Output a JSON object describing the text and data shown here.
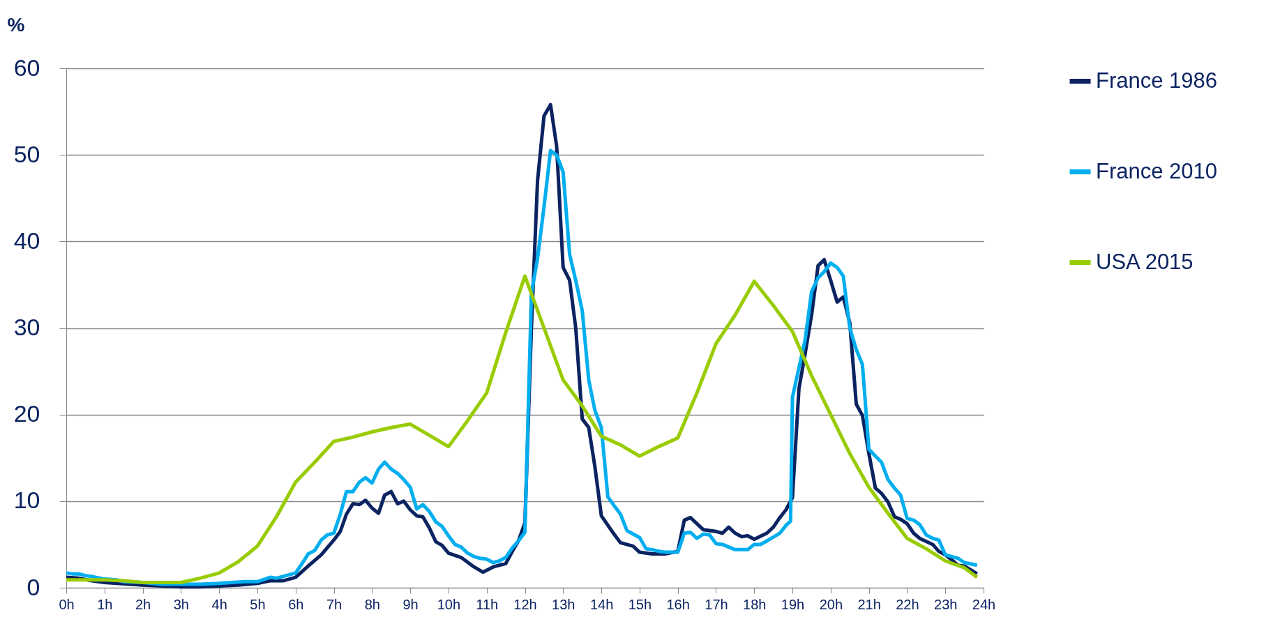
{
  "chart_data": {
    "type": "line",
    "ylabel": "%",
    "xlim": [
      0,
      24
    ],
    "xticks": [
      {
        "value": 0,
        "label": "0h"
      },
      {
        "value": 1,
        "label": "1h"
      },
      {
        "value": 2,
        "label": "2h"
      },
      {
        "value": 3,
        "label": "3h"
      },
      {
        "value": 4,
        "label": "4h"
      },
      {
        "value": 5,
        "label": "5h"
      },
      {
        "value": 6,
        "label": "6h"
      },
      {
        "value": 7,
        "label": "7h"
      },
      {
        "value": 8,
        "label": "8h"
      },
      {
        "value": 9,
        "label": "9h"
      },
      {
        "value": 10,
        "label": "10h"
      },
      {
        "value": 11,
        "label": "11h"
      },
      {
        "value": 12,
        "label": "12h"
      },
      {
        "value": 13,
        "label": "13h"
      },
      {
        "value": 14,
        "label": "14h"
      },
      {
        "value": 15,
        "label": "15h"
      },
      {
        "value": 16,
        "label": "16h"
      },
      {
        "value": 17,
        "label": "17h"
      },
      {
        "value": 18,
        "label": "18h"
      },
      {
        "value": 19,
        "label": "19h"
      },
      {
        "value": 20,
        "label": "20h"
      },
      {
        "value": 21,
        "label": "21h"
      },
      {
        "value": 22,
        "label": "22h"
      },
      {
        "value": 23,
        "label": "23h"
      },
      {
        "value": 24,
        "label": "24h"
      }
    ],
    "ylim": [
      0,
      60
    ],
    "yticks": [
      0,
      10,
      20,
      30,
      40,
      50,
      60
    ],
    "grid": "y",
    "legend": "right",
    "marker": "none",
    "line_style": "solid",
    "series": [
      {
        "name": "France 1986",
        "color": "#0b2361",
        "x": [
          0,
          0.33,
          0.67,
          1,
          1.33,
          1.67,
          2,
          2.5,
          3,
          3.5,
          4,
          4.5,
          5,
          5.33,
          5.67,
          6,
          6.33,
          6.67,
          7,
          7.17,
          7.33,
          7.5,
          7.67,
          7.83,
          8,
          8.17,
          8.33,
          8.5,
          8.67,
          8.83,
          9,
          9.17,
          9.33,
          9.5,
          9.67,
          9.83,
          10,
          10.33,
          10.67,
          10.9,
          11.17,
          11.5,
          11.67,
          11.83,
          12,
          12.17,
          12.33,
          12.5,
          12.67,
          12.83,
          13,
          13.17,
          13.33,
          13.5,
          13.67,
          13.83,
          14,
          14.33,
          14.5,
          14.83,
          15,
          15.33,
          15.67,
          16,
          16.17,
          16.33,
          16.5,
          16.67,
          17,
          17.17,
          17.33,
          17.5,
          17.67,
          17.83,
          18,
          18.33,
          18.5,
          18.67,
          18.83,
          19,
          19.17,
          19.33,
          19.5,
          19.67,
          19.83,
          20,
          20.17,
          20.33,
          20.5,
          20.67,
          20.83,
          21,
          21.17,
          21.33,
          21.5,
          21.67,
          21.83,
          22,
          22.17,
          22.33,
          22.67,
          22.83,
          23,
          23.17,
          23.33,
          23.5,
          23.83
        ],
        "values": [
          1.2,
          1.1,
          0.8,
          0.6,
          0.5,
          0.4,
          0.3,
          0.2,
          0.1,
          0.1,
          0.2,
          0.3,
          0.5,
          0.8,
          0.8,
          1.2,
          2.5,
          3.8,
          5.5,
          6.5,
          8.5,
          9.7,
          9.6,
          10.1,
          9.2,
          8.6,
          10.7,
          11.1,
          9.7,
          10,
          9,
          8.3,
          8.2,
          6.9,
          5.3,
          4.9,
          4,
          3.5,
          2.4,
          1.8,
          2.4,
          2.8,
          4.2,
          5.4,
          7.5,
          30,
          47,
          54.5,
          55.8,
          51,
          37,
          35.5,
          30,
          19.5,
          18.5,
          14,
          8.3,
          6.2,
          5.2,
          4.8,
          4.1,
          3.9,
          3.9,
          4.2,
          7.8,
          8.1,
          7.4,
          6.7,
          6.5,
          6.3,
          7,
          6.3,
          5.9,
          6,
          5.6,
          6.3,
          7,
          8.1,
          9,
          10.4,
          23,
          27,
          31.5,
          37.2,
          37.9,
          35.5,
          33,
          33.6,
          30.6,
          21.2,
          19.9,
          15.5,
          11.5,
          10.9,
          9.9,
          8.2,
          7.9,
          7.4,
          6.3,
          5.7,
          5,
          4.2,
          3.8,
          3.2,
          2.6,
          2.5,
          1.6
        ]
      },
      {
        "name": "France 2010",
        "color": "#00aeef",
        "x": [
          0,
          0.17,
          0.33,
          0.5,
          0.67,
          1,
          1.33,
          1.5,
          2,
          2.5,
          3,
          3.5,
          4,
          4.33,
          4.67,
          5,
          5.33,
          5.5,
          5.83,
          6,
          6.17,
          6.33,
          6.5,
          6.67,
          6.83,
          7,
          7.17,
          7.33,
          7.5,
          7.67,
          7.83,
          8,
          8.17,
          8.33,
          8.5,
          8.67,
          8.83,
          9,
          9.17,
          9.33,
          9.5,
          9.67,
          9.83,
          10,
          10.17,
          10.33,
          10.5,
          10.67,
          10.83,
          11,
          11.17,
          11.33,
          11.5,
          11.67,
          11.83,
          12,
          12.17,
          12.33,
          12.5,
          12.67,
          12.83,
          13,
          13.17,
          13.33,
          13.5,
          13.67,
          13.83,
          14,
          14.17,
          14.33,
          14.5,
          14.67,
          14.83,
          15,
          15.17,
          15.33,
          15.5,
          15.67,
          16,
          16.17,
          16.33,
          16.5,
          16.67,
          16.83,
          17,
          17.17,
          17.33,
          17.5,
          17.67,
          17.83,
          18,
          18.17,
          18.33,
          18.67,
          18.83,
          18.95,
          19,
          19.33,
          19.5,
          19.67,
          19.83,
          20,
          20.17,
          20.33,
          20.5,
          20.67,
          20.83,
          21,
          21.17,
          21.33,
          21.5,
          21.67,
          21.83,
          22,
          22.17,
          22.33,
          22.5,
          22.67,
          22.83,
          23,
          23.17,
          23.33,
          23.5,
          23.83
        ],
        "values": [
          1.7,
          1.6,
          1.6,
          1.4,
          1.3,
          1,
          0.9,
          0.7,
          0.6,
          0.4,
          0.4,
          0.4,
          0.5,
          0.6,
          0.7,
          0.7,
          1.2,
          1.1,
          1.5,
          1.7,
          2.8,
          3.9,
          4.3,
          5.5,
          6.1,
          6.3,
          8.5,
          11.1,
          11.1,
          12.2,
          12.7,
          12.1,
          13.7,
          14.5,
          13.7,
          13.2,
          12.5,
          11.6,
          9.1,
          9.6,
          8.8,
          7.6,
          7.1,
          6,
          5,
          4.7,
          4,
          3.6,
          3.4,
          3.3,
          2.9,
          3.1,
          3.5,
          4.6,
          5.4,
          6.4,
          34,
          38,
          44,
          50.5,
          50,
          48,
          38.5,
          35.5,
          32,
          24,
          20.5,
          18.5,
          10.5,
          9.5,
          8.5,
          6.6,
          6.2,
          5.8,
          4.5,
          4.4,
          4.2,
          4.1,
          4.1,
          6.3,
          6.4,
          5.7,
          6.2,
          6.1,
          5.1,
          5,
          4.7,
          4.4,
          4.4,
          4.4,
          5,
          5,
          5.4,
          6.3,
          7.2,
          7.7,
          22,
          28.6,
          34.2,
          35.8,
          36.5,
          37.5,
          37,
          36,
          30,
          27.5,
          25.8,
          16,
          15.2,
          14.5,
          12.5,
          11.5,
          10.7,
          8,
          7.8,
          7.3,
          6.1,
          5.7,
          5.5,
          3.8,
          3.6,
          3.4,
          2.9,
          2.6
        ]
      },
      {
        "name": "USA 2015",
        "color": "#99cc00",
        "x": [
          0,
          0.5,
          1,
          1.5,
          2,
          2.5,
          3,
          3.5,
          4,
          4.5,
          5,
          5.5,
          6,
          6.5,
          7,
          7.5,
          8,
          8.5,
          9,
          9.5,
          10,
          10.5,
          11,
          11.5,
          12,
          12.5,
          13,
          13.5,
          14,
          14.5,
          15,
          15.5,
          16,
          16.5,
          17,
          17.5,
          18,
          18.5,
          19,
          19.5,
          20,
          20.5,
          21,
          21.5,
          22,
          22.5,
          23,
          23.5,
          23.83
        ],
        "values": [
          0.9,
          0.9,
          0.9,
          0.8,
          0.6,
          0.6,
          0.6,
          1.1,
          1.7,
          3,
          4.8,
          8.2,
          12.2,
          14.5,
          16.9,
          17.4,
          18,
          18.5,
          18.9,
          17.6,
          16.3,
          19.3,
          22.5,
          29.5,
          36,
          30,
          24,
          21,
          17.5,
          16.5,
          15.2,
          16.3,
          17.3,
          22.5,
          28.2,
          31.5,
          35.4,
          32.6,
          29.6,
          24.5,
          20,
          15.5,
          11.6,
          8.6,
          5.7,
          4.5,
          3.1,
          2.3,
          1.2
        ]
      }
    ]
  }
}
